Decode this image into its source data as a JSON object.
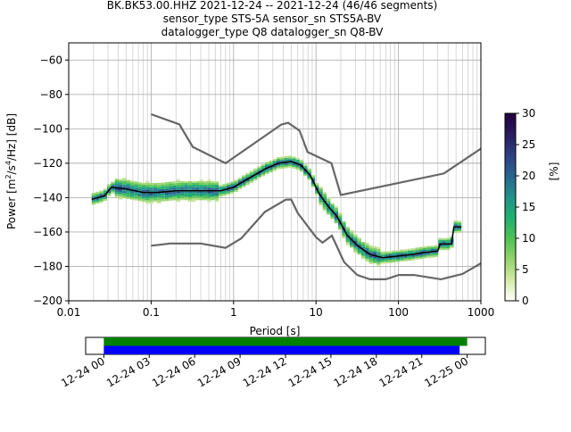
{
  "figure": {
    "title_lines": [
      "BK.BK53.00.HHZ   2021-12-24 -- 2021-12-24  (46/46 segments)",
      "sensor_type STS-5A sensor_sn STS5A-BV",
      "datalogger_type Q8 datalogger_sn Q8-BV"
    ]
  },
  "chart_data": [
    {
      "type": "heatmap",
      "description_kind": "probabilistic power spectral density",
      "xlabel": "Period [s]",
      "ylabel": "Power [m²/s⁴/Hz] [dB]",
      "xscale": "log",
      "xlim": [
        0.01,
        1000
      ],
      "ylim": [
        -200,
        -50
      ],
      "x_ticks": [
        0.01,
        0.1,
        1,
        10,
        100,
        1000
      ],
      "x_tick_labels": [
        "0.01",
        "0.1",
        "1",
        "10",
        "100",
        "1000"
      ],
      "y_ticks": [
        -200,
        -180,
        -160,
        -140,
        -120,
        -100,
        -80,
        -60
      ],
      "y_tick_labels": [
        "−200",
        "−180",
        "−160",
        "−140",
        "−120",
        "−100",
        "−80",
        "−60"
      ],
      "grid": true,
      "noise_models": [
        {
          "name": "high",
          "color": "#666666",
          "points": [
            [
              0.1,
              -91.5
            ],
            [
              0.22,
              -97.4
            ],
            [
              0.32,
              -110.5
            ],
            [
              0.8,
              -120
            ],
            [
              3.8,
              -97.5
            ],
            [
              4.6,
              -96.5
            ],
            [
              6.3,
              -101
            ],
            [
              7.9,
              -113.5
            ],
            [
              15.4,
              -120
            ],
            [
              20,
              -138.5
            ],
            [
              354.8,
              -126
            ],
            [
              1000,
              -111.5
            ]
          ]
        },
        {
          "name": "low",
          "color": "#666666",
          "points": [
            [
              0.1,
              -168
            ],
            [
              0.17,
              -166.7
            ],
            [
              0.4,
              -166.7
            ],
            [
              0.8,
              -169.2
            ],
            [
              1.24,
              -163.7
            ],
            [
              2.4,
              -148.3
            ],
            [
              4.3,
              -141.2
            ],
            [
              5.0,
              -141.1
            ],
            [
              6.0,
              -149.0
            ],
            [
              10.0,
              -163.0
            ],
            [
              12.0,
              -166.2
            ],
            [
              15.6,
              -162.1
            ],
            [
              21.9,
              -177.5
            ],
            [
              31.6,
              -185.0
            ],
            [
              45.0,
              -187.5
            ],
            [
              70.0,
              -187.5
            ],
            [
              101,
              -185.0
            ],
            [
              154,
              -185.0
            ],
            [
              328,
              -187.5
            ],
            [
              600,
              -184.4
            ],
            [
              1000,
              -178.2
            ]
          ]
        }
      ],
      "median": {
        "color": "#000000",
        "points": [
          [
            0.019,
            -141
          ],
          [
            0.027,
            -139
          ],
          [
            0.033,
            -134
          ],
          [
            0.05,
            -135
          ],
          [
            0.08,
            -137
          ],
          [
            0.12,
            -137
          ],
          [
            0.2,
            -136
          ],
          [
            0.4,
            -136
          ],
          [
            0.7,
            -136
          ],
          [
            1.0,
            -134
          ],
          [
            1.5,
            -129
          ],
          [
            2.5,
            -123
          ],
          [
            3.5,
            -120
          ],
          [
            5.0,
            -119
          ],
          [
            6.5,
            -121
          ],
          [
            8.5,
            -127
          ],
          [
            11,
            -138
          ],
          [
            14,
            -145
          ],
          [
            18,
            -151
          ],
          [
            24,
            -162
          ],
          [
            32,
            -168
          ],
          [
            45,
            -173
          ],
          [
            65,
            -175
          ],
          [
            100,
            -174
          ],
          [
            150,
            -173
          ],
          [
            200,
            -172
          ],
          [
            300,
            -171
          ],
          [
            320,
            -167
          ],
          [
            440,
            -167
          ],
          [
            470,
            -157
          ],
          [
            580,
            -157
          ]
        ]
      },
      "colorbar": {
        "label": "[%]",
        "range": [
          0,
          30
        ],
        "ticks": [
          0,
          5,
          10,
          15,
          20,
          25,
          30
        ],
        "tick_labels": [
          "0",
          "5",
          "10",
          "15",
          "20",
          "25",
          "30"
        ],
        "colormap": [
          "#ffffff",
          "#d4eaa6",
          "#92d36b",
          "#4fc153",
          "#1fb06f",
          "#21928a",
          "#2a648f",
          "#2d3e83",
          "#2a1a5e",
          "#200040"
        ]
      }
    },
    {
      "type": "timeline",
      "x_tick_labels": [
        "12-24 00",
        "12-24 03",
        "12-24 06",
        "12-24 09",
        "12-24 12",
        "12-24 15",
        "12-24 18",
        "12-24 21",
        "12-25 00"
      ],
      "x_tick_hours": [
        0,
        3,
        6,
        9,
        12,
        15,
        18,
        21,
        24
      ],
      "xlim_hours": [
        -1.2,
        25.2
      ],
      "bars": [
        {
          "name": "used",
          "color": "#008000",
          "start_hours": 0,
          "end_hours": 24.0
        },
        {
          "name": "available",
          "color": "#0000ff",
          "start_hours": 0,
          "end_hours": 23.5
        }
      ]
    }
  ]
}
